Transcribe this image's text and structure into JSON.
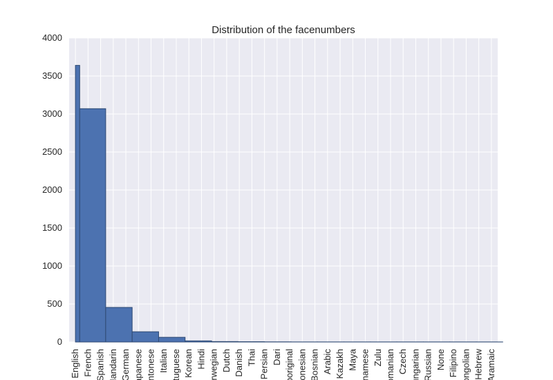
{
  "chart_data": {
    "type": "bar",
    "title": "Distribution of the facenumbers",
    "xlabel": "",
    "ylabel": "",
    "ylim": [
      0,
      4000
    ],
    "yticks": [
      0,
      500,
      1000,
      1500,
      2000,
      2500,
      3000,
      3500,
      4000
    ],
    "grid": true,
    "legend": "none",
    "categories": [
      "English",
      "French",
      "Spanish",
      "Mandarin",
      "German",
      "Japanese",
      "Cantonese",
      "Italian",
      "Portuguese",
      "Korean",
      "Hindi",
      "Norwegian",
      "Dutch",
      "Danish",
      "Thai",
      "Persian",
      "Dari",
      "Aboriginal",
      "Indonesian",
      "Bosnian",
      "Arabic",
      "Kazakh",
      "Maya",
      "Vietnamese",
      "Zulu",
      "Romanian",
      "Czech",
      "Hungarian",
      "Russian",
      "None",
      "Filipino",
      "Mongolian",
      "Hebrew",
      "Aramaic"
    ],
    "bars": [
      {
        "x_start": 0.0,
        "x_end": 0.34,
        "value": 3640
      },
      {
        "x_start": 0.34,
        "x_end": 2.4,
        "value": 3070
      },
      {
        "x_start": 2.4,
        "x_end": 4.5,
        "value": 455
      },
      {
        "x_start": 4.5,
        "x_end": 6.6,
        "value": 135
      },
      {
        "x_start": 6.6,
        "x_end": 8.7,
        "value": 62
      },
      {
        "x_start": 8.7,
        "x_end": 10.8,
        "value": 15
      },
      {
        "x_start": 10.8,
        "x_end": 12.9,
        "value": 6
      },
      {
        "x_start": 12.9,
        "x_end": 15.0,
        "value": 4
      },
      {
        "x_start": 15.0,
        "x_end": 17.1,
        "value": 2
      },
      {
        "x_start": 17.1,
        "x_end": 19.2,
        "value": 1
      },
      {
        "x_start": 19.2,
        "x_end": 21.3,
        "value": 1
      },
      {
        "x_start": 21.3,
        "x_end": 23.4,
        "value": 1
      },
      {
        "x_start": 23.4,
        "x_end": 25.5,
        "value": 1
      },
      {
        "x_start": 25.5,
        "x_end": 27.6,
        "value": 1
      },
      {
        "x_start": 27.6,
        "x_end": 29.7,
        "value": 1
      },
      {
        "x_start": 29.7,
        "x_end": 31.8,
        "value": 1
      },
      {
        "x_start": 31.8,
        "x_end": 33.9,
        "value": 1
      }
    ],
    "colors": {
      "bar": "#4c72b0",
      "bar_edge": "#2f4a73",
      "plot_background": "#eaeaf2",
      "grid": "#ffffff",
      "text": "#262626"
    }
  }
}
